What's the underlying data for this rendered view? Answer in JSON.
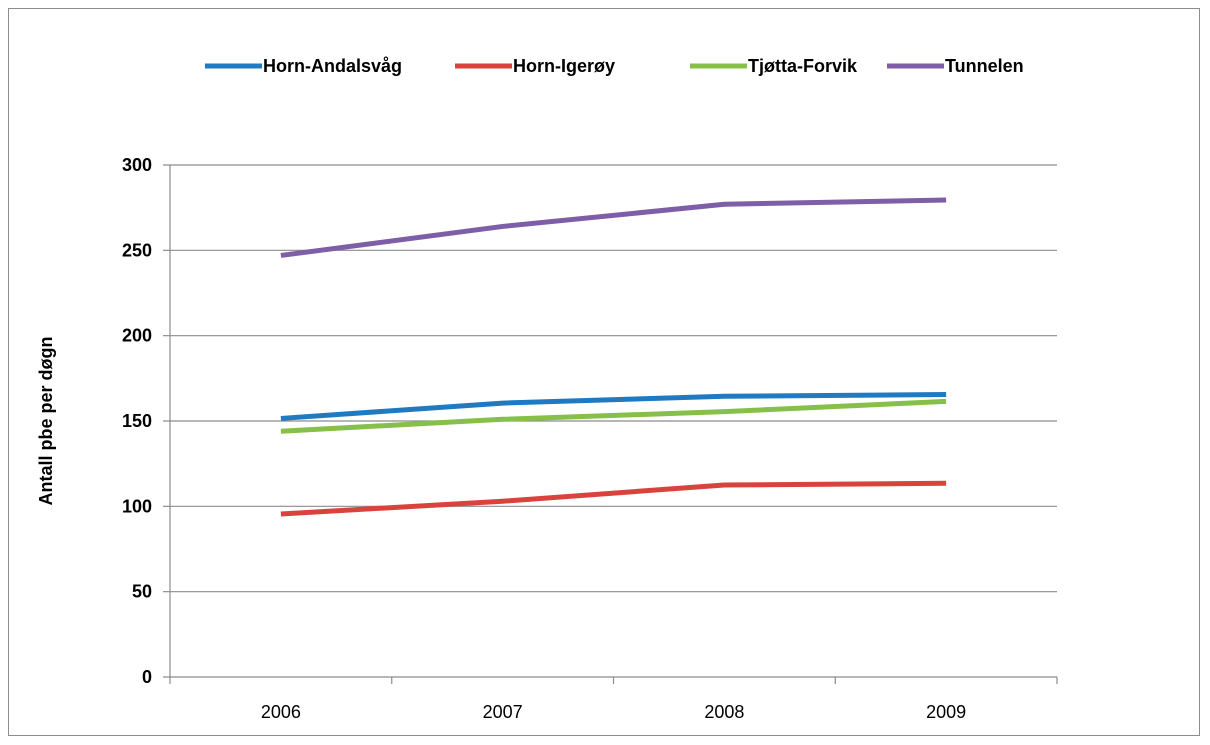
{
  "chart_data": {
    "type": "line",
    "title": "",
    "xlabel": "",
    "ylabel": "Antall pbe per døgn",
    "categories": [
      "2006",
      "2007",
      "2008",
      "2009"
    ],
    "ylim": [
      0,
      300
    ],
    "yticks": [
      0,
      50,
      100,
      150,
      200,
      250,
      300
    ],
    "grid": "horizontal",
    "legend_position": "top",
    "series": [
      {
        "name": "Horn-Andalsvåg",
        "color": "#1f7ac2",
        "values": [
          151.5,
          160.5,
          164.5,
          165.5
        ]
      },
      {
        "name": "Horn-Igerøy",
        "color": "#d9433d",
        "values": [
          95.5,
          103,
          112.5,
          113.5
        ]
      },
      {
        "name": "Tjøtta-Forvik",
        "color": "#86bf4a",
        "values": [
          144,
          151,
          155.5,
          161.5
        ]
      },
      {
        "name": "Tunnelen",
        "color": "#7e5ea6",
        "values": [
          247,
          264,
          277,
          279.5
        ]
      }
    ]
  }
}
